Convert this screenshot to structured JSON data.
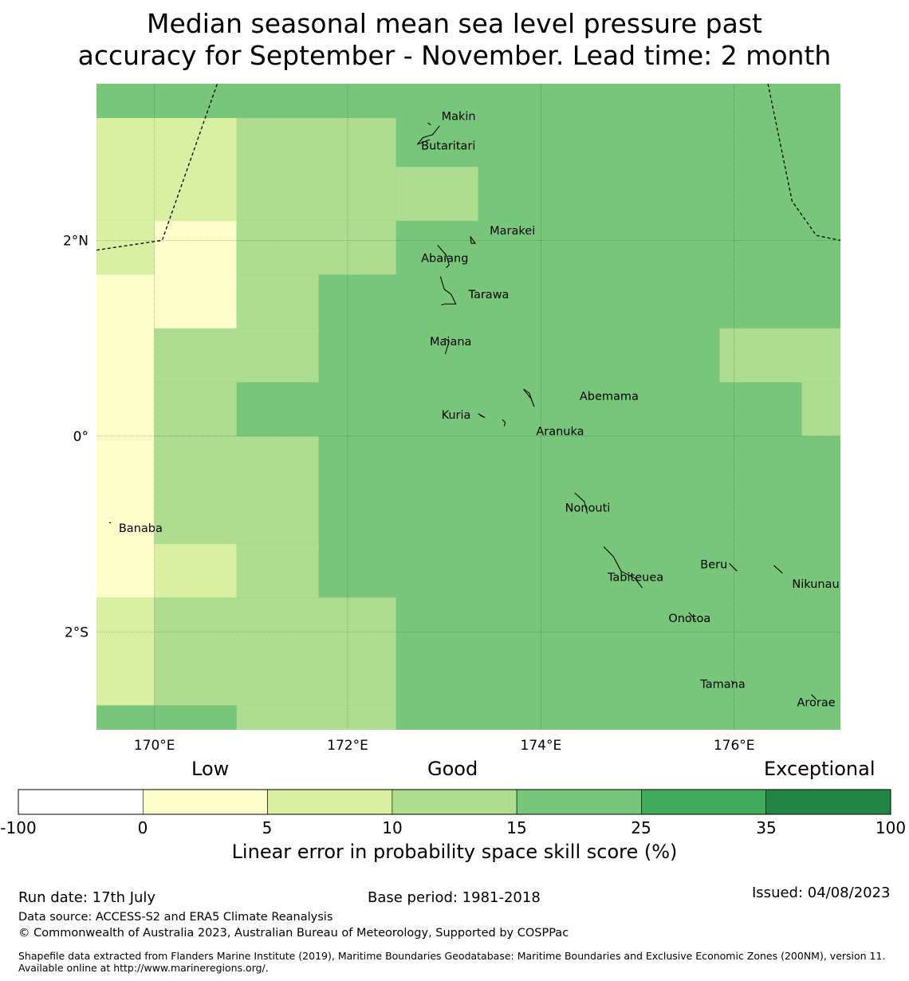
{
  "title": {
    "line1": "Median seasonal mean sea level pressure past",
    "line2": "accuracy for September - November. Lead time: 2 month"
  },
  "map": {
    "lon_range": [
      169.4,
      177.1
    ],
    "lat_range": [
      -3.0,
      3.6
    ],
    "x_ticks": [
      {
        "value": 170,
        "label": "170°E"
      },
      {
        "value": 172,
        "label": "172°E"
      },
      {
        "value": 174,
        "label": "174°E"
      },
      {
        "value": 176,
        "label": "176°E"
      }
    ],
    "y_ticks": [
      {
        "value": 2,
        "label": "2°N"
      },
      {
        "value": 0,
        "label": "0°"
      },
      {
        "value": -2,
        "label": "2°S"
      }
    ],
    "grid_cells": [
      {
        "lon0": 169.4,
        "lon1": 177.1,
        "lat0": -3.0,
        "lat1": 3.6,
        "cls": 4
      },
      {
        "lon0": 169.4,
        "lon1": 170.85,
        "lat0": 2.2,
        "lat1": 3.25,
        "cls": 2
      },
      {
        "lon0": 170.85,
        "lon1": 172.5,
        "lat0": 2.2,
        "lat1": 3.25,
        "cls": 3
      },
      {
        "lon0": 172.5,
        "lon1": 173.35,
        "lat0": 2.2,
        "lat1": 2.75,
        "cls": 3
      },
      {
        "lon0": 169.4,
        "lon1": 170.0,
        "lat0": 1.65,
        "lat1": 2.2,
        "cls": 2
      },
      {
        "lon0": 170.0,
        "lon1": 170.85,
        "lat0": 1.1,
        "lat1": 2.2,
        "cls": 1
      },
      {
        "lon0": 170.85,
        "lon1": 172.5,
        "lat0": 1.65,
        "lat1": 2.2,
        "cls": 3
      },
      {
        "lon0": 170.85,
        "lon1": 171.7,
        "lat0": 1.1,
        "lat1": 1.65,
        "cls": 3
      },
      {
        "lon0": 169.4,
        "lon1": 170.0,
        "lat0": -1.65,
        "lat1": 1.65,
        "cls": 1
      },
      {
        "lon0": 170.0,
        "lon1": 171.7,
        "lat0": 0.55,
        "lat1": 1.1,
        "cls": 3
      },
      {
        "lon0": 170.0,
        "lon1": 170.85,
        "lat0": 0.0,
        "lat1": 0.55,
        "cls": 3
      },
      {
        "lon0": 170.0,
        "lon1": 171.7,
        "lat0": -1.1,
        "lat1": 0.0,
        "cls": 3
      },
      {
        "lon0": 170.0,
        "lon1": 170.85,
        "lat0": -1.65,
        "lat1": -1.1,
        "cls": 2
      },
      {
        "lon0": 170.85,
        "lon1": 171.7,
        "lat0": -1.65,
        "lat1": -1.1,
        "cls": 3
      },
      {
        "lon0": 169.4,
        "lon1": 170.0,
        "lat0": -2.75,
        "lat1": -1.65,
        "cls": 2
      },
      {
        "lon0": 170.0,
        "lon1": 172.5,
        "lat0": -2.75,
        "lat1": -1.65,
        "cls": 3
      },
      {
        "lon0": 170.85,
        "lon1": 172.5,
        "lat0": -3.0,
        "lat1": -2.75,
        "cls": 3
      },
      {
        "lon0": 175.85,
        "lon1": 177.1,
        "lat0": 0.55,
        "lat1": 1.1,
        "cls": 3
      },
      {
        "lon0": 176.7,
        "lon1": 177.1,
        "lat0": 0.0,
        "lat1": 0.55,
        "cls": 3
      }
    ],
    "boundaries": [
      [
        [
          169.4,
          1.9
        ],
        [
          170.08,
          2.0
        ],
        [
          170.65,
          3.6
        ]
      ],
      [
        [
          176.35,
          3.6
        ],
        [
          176.6,
          2.4
        ],
        [
          176.85,
          2.05
        ],
        [
          177.1,
          2.0
        ]
      ]
    ],
    "islands": [
      {
        "name": "Makin",
        "lon": 172.97,
        "lat": 3.27,
        "shape": [
          [
            172.83,
            3.2
          ],
          [
            172.86,
            3.18
          ]
        ]
      },
      {
        "name": "Butaritari",
        "lon": 172.76,
        "lat": 2.97,
        "shape": [
          [
            172.95,
            3.17
          ],
          [
            172.88,
            3.08
          ],
          [
            172.78,
            3.05
          ],
          [
            172.72,
            2.98
          ],
          [
            172.85,
            3.03
          ]
        ]
      },
      {
        "name": "Marakei",
        "lon": 173.47,
        "lat": 2.1,
        "shape": [
          [
            173.27,
            2.04
          ],
          [
            173.32,
            1.97
          ],
          [
            173.28,
            1.97
          ],
          [
            173.27,
            2.04
          ]
        ]
      },
      {
        "name": "Abaiang",
        "lon": 172.76,
        "lat": 1.82,
        "shape": [
          [
            172.93,
            1.95
          ],
          [
            173.02,
            1.85
          ],
          [
            173.05,
            1.75
          ],
          [
            173.02,
            1.72
          ]
        ]
      },
      {
        "name": "Tarawa",
        "lon": 173.25,
        "lat": 1.45,
        "shape": [
          [
            172.96,
            1.63
          ],
          [
            173.0,
            1.5
          ],
          [
            173.07,
            1.45
          ],
          [
            173.12,
            1.35
          ],
          [
            173.0,
            1.35
          ],
          [
            172.97,
            1.34
          ]
        ]
      },
      {
        "name": "Maiana",
        "lon": 172.85,
        "lat": 0.97,
        "shape": [
          [
            173.0,
            1.0
          ],
          [
            173.05,
            0.97
          ],
          [
            173.01,
            0.84
          ]
        ]
      },
      {
        "name": "Abemama",
        "lon": 174.4,
        "lat": 0.41,
        "shape": [
          [
            173.82,
            0.48
          ],
          [
            173.88,
            0.44
          ],
          [
            173.93,
            0.3
          ],
          [
            173.9,
            0.38
          ],
          [
            173.82,
            0.48
          ]
        ]
      },
      {
        "name": "Kuria",
        "lon": 172.97,
        "lat": 0.22,
        "shape": [
          [
            173.35,
            0.23
          ],
          [
            173.42,
            0.19
          ],
          [
            173.37,
            0.21
          ]
        ]
      },
      {
        "name": "Aranuka",
        "lon": 173.95,
        "lat": 0.05,
        "shape": [
          [
            173.6,
            0.17
          ],
          [
            173.63,
            0.14
          ],
          [
            173.62,
            0.1
          ]
        ]
      },
      {
        "name": "Nonouti",
        "lon": 174.25,
        "lat": -0.73,
        "shape": [
          [
            174.35,
            -0.58
          ],
          [
            174.45,
            -0.67
          ],
          [
            174.48,
            -0.79
          ]
        ]
      },
      {
        "name": "Tabiteuea",
        "lon": 174.69,
        "lat": -1.44,
        "shape": [
          [
            174.65,
            -1.13
          ],
          [
            174.75,
            -1.23
          ],
          [
            174.83,
            -1.38
          ],
          [
            174.97,
            -1.45
          ],
          [
            175.05,
            -1.55
          ]
        ]
      },
      {
        "name": "Beru",
        "lon": 175.65,
        "lat": -1.31,
        "shape": [
          [
            175.95,
            -1.3
          ],
          [
            176.03,
            -1.38
          ]
        ]
      },
      {
        "name": "Nikunau",
        "lon": 176.6,
        "lat": -1.51,
        "shape": [
          [
            176.41,
            -1.32
          ],
          [
            176.5,
            -1.4
          ]
        ]
      },
      {
        "name": "Onotoa",
        "lon": 175.32,
        "lat": -1.86,
        "shape": [
          [
            175.53,
            -1.8
          ],
          [
            175.6,
            -1.88
          ]
        ]
      },
      {
        "name": "Tamana",
        "lon": 175.65,
        "lat": -2.53,
        "shape": [
          [
            175.97,
            -2.5
          ],
          [
            176.0,
            -2.53
          ]
        ]
      },
      {
        "name": "Arorae",
        "lon": 176.65,
        "lat": -2.72,
        "shape": [
          [
            176.8,
            -2.64
          ],
          [
            176.85,
            -2.69
          ]
        ]
      },
      {
        "name": "Banaba",
        "lon": 169.63,
        "lat": -0.94,
        "shape": [
          [
            169.53,
            -0.88
          ],
          [
            169.55,
            -0.89
          ]
        ]
      }
    ]
  },
  "legend": {
    "category_labels": {
      "low": "Low",
      "good": "Good",
      "exceptional": "Exceptional"
    },
    "bins": [
      {
        "from": -100,
        "to": 0,
        "color": "#ffffff"
      },
      {
        "from": 0,
        "to": 5,
        "color": "#ffffcc"
      },
      {
        "from": 5,
        "to": 10,
        "color": "#d9f0a3"
      },
      {
        "from": 10,
        "to": 15,
        "color": "#addd8e"
      },
      {
        "from": 15,
        "to": 25,
        "color": "#78c679"
      },
      {
        "from": 25,
        "to": 35,
        "color": "#41ab5d"
      },
      {
        "from": 35,
        "to": 100,
        "color": "#238443"
      }
    ],
    "tick_labels": [
      "-100",
      "0",
      "5",
      "10",
      "15",
      "25",
      "35",
      "100"
    ],
    "title": "Linear error in probability space skill score (%)"
  },
  "footer": {
    "run_date": "Run date: 17th July",
    "base_period": "Base period: 1981-2018",
    "issued": "Issued: 04/08/2023",
    "data_source": "Data source: ACCESS-S2 and ERA5 Climate Reanalysis",
    "copyright": "© Commonwealth of Australia 2023, Australian Bureau of Meteorology, Supported by COSPPac",
    "shapefile": "Shapefile data extracted from Flanders Marine Institute (2019), Maritime Boundaries Geodatabase: Maritime Boundaries and Exclusive Economic Zones (200NM), version 11. Available online at http://www.marineregions.org/."
  }
}
